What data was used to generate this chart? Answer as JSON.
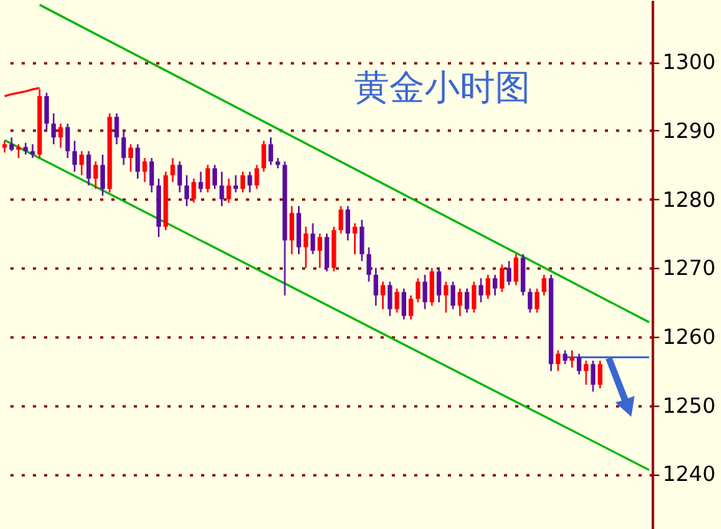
{
  "chart_data": {
    "type": "candlestick",
    "title": "黄金小时图",
    "categories": [
      null,
      null,
      null,
      null,
      null,
      null,
      null,
      null,
      null,
      null,
      null,
      null,
      null,
      null,
      null,
      null,
      null,
      null,
      null,
      null,
      null,
      null,
      null,
      null,
      null,
      null,
      null,
      null,
      null,
      null,
      null,
      null,
      null,
      null,
      null,
      null,
      null,
      null,
      null,
      null,
      null,
      null,
      null,
      null,
      null,
      null,
      null,
      null,
      null,
      null,
      null,
      null,
      null,
      null,
      null,
      null,
      null,
      null,
      null,
      null,
      null,
      null,
      null,
      null,
      null,
      null,
      null,
      null,
      null,
      null,
      null,
      null,
      null,
      null,
      null,
      null,
      null,
      null,
      null,
      null,
      null,
      null,
      null,
      null,
      null,
      null,
      null,
      null,
      null,
      null,
      null,
      null,
      null
    ],
    "colors": [
      "#ff0000",
      "#5a0aa0",
      "#ff0000",
      "#5a0aa0",
      "#5a0aa0",
      "#ff0000",
      "#5a0aa0",
      "#5a0aa0",
      "#ff0000",
      "#5a0aa0",
      "#5a0aa0",
      "#ff0000",
      "#5a0aa0",
      "#ff0000",
      "#5a0aa0",
      "#ff0000",
      "#5a0aa0",
      "#5a0aa0",
      "#ff0000",
      "#5a0aa0",
      "#ff0000",
      "#5a0aa0",
      "#5a0aa0",
      "#ff0000",
      "#ff0000",
      "#5a0aa0",
      "#5a0aa0",
      "#ff0000",
      "#5a0aa0",
      "#ff0000",
      "#5a0aa0",
      "#5a0aa0",
      "#ff0000",
      "#5a0aa0",
      "#ff0000",
      "#5a0aa0",
      "#ff0000",
      "#ff0000",
      "#5a0aa0",
      "#5a0aa0",
      "#5a0aa0",
      "#ff0000",
      "#5a0aa0",
      "#ff0000",
      "#5a0aa0",
      "#ff0000",
      "#5a0aa0",
      "#ff0000",
      "#ff0000",
      "#5a0aa0",
      "#ff0000",
      "#5a0aa0",
      "#5a0aa0",
      "#5a0aa0",
      "#ff0000",
      "#5a0aa0",
      "#ff0000",
      "#5a0aa0",
      "#ff0000",
      "#ff0000",
      "#5a0aa0",
      "#ff0000",
      "#5a0aa0",
      "#ff0000",
      "#5a0aa0",
      "#ff0000",
      "#5a0aa0",
      "#ff0000",
      "#5a0aa0",
      "#ff0000",
      "#5a0aa0",
      "#ff0000",
      "#5a0aa0",
      "#ff0000",
      "#5a0aa0",
      "#5a0aa0",
      "#ff0000",
      "#ff0000",
      "#5a0aa0",
      "#ff0000",
      "#5a0aa0",
      "#ff0000",
      "#5a0aa0",
      "#ff0000",
      "#5a0aa0",
      "#ff0000",
      null,
      null,
      null,
      null,
      null,
      null,
      null
    ],
    "ohlc": [
      [
        1287.5,
        1288.5,
        1286.8,
        1288
      ],
      [
        1288,
        1289,
        1287,
        1287.2
      ],
      [
        1287.2,
        1288,
        1286,
        1287.6
      ],
      [
        1287.6,
        1288.2,
        1286.5,
        1287
      ],
      [
        1287,
        1288,
        1286,
        1286.5
      ],
      [
        1286.5,
        1296,
        1286,
        1295
      ],
      [
        1295,
        1295.5,
        1290,
        1291
      ],
      [
        1291,
        1292.5,
        1288,
        1289
      ],
      [
        1289,
        1291,
        1287.5,
        1290.5
      ],
      [
        1290.5,
        1291,
        1286,
        1287
      ],
      [
        1287,
        1288.5,
        1284,
        1285
      ],
      [
        1285,
        1287,
        1283.5,
        1286.5
      ],
      [
        1286.5,
        1287,
        1282,
        1283
      ],
      [
        1283,
        1285.5,
        1281.5,
        1285
      ],
      [
        1285,
        1286.5,
        1280.5,
        1281.5
      ],
      [
        1281.5,
        1292.5,
        1281,
        1292
      ],
      [
        1292,
        1292.5,
        1288,
        1289
      ],
      [
        1289,
        1290,
        1285,
        1286
      ],
      [
        1286,
        1288,
        1284,
        1287.5
      ],
      [
        1287.5,
        1288,
        1283,
        1284
      ],
      [
        1284,
        1286,
        1282.5,
        1285.5
      ],
      [
        1285.5,
        1286,
        1281,
        1282
      ],
      [
        1282,
        1283,
        1274.5,
        1276
      ],
      [
        1276,
        1284,
        1275.5,
        1283.5
      ],
      [
        1283.5,
        1286,
        1282.5,
        1285
      ],
      [
        1285,
        1285.5,
        1281,
        1282
      ],
      [
        1282,
        1283.5,
        1279,
        1280
      ],
      [
        1280,
        1283,
        1279.5,
        1282.5
      ],
      [
        1282.5,
        1284,
        1281,
        1281.5
      ],
      [
        1281.5,
        1285,
        1281,
        1284.5
      ],
      [
        1284.5,
        1285,
        1281.5,
        1282
      ],
      [
        1282,
        1284,
        1279,
        1280
      ],
      [
        1280,
        1283,
        1279.5,
        1282
      ],
      [
        1282,
        1283.5,
        1281,
        1281.5
      ],
      [
        1281.5,
        1284,
        1281,
        1283.5
      ],
      [
        1283.5,
        1284,
        1281,
        1282
      ],
      [
        1282,
        1285,
        1281.5,
        1284.5
      ],
      [
        1284.5,
        1288.5,
        1284,
        1288
      ],
      [
        1288,
        1289,
        1285,
        1285.5
      ],
      [
        1285.5,
        1286,
        1284.5,
        1285
      ],
      [
        1285,
        1285.5,
        1266,
        1274
      ],
      [
        1274,
        1279,
        1272,
        1278
      ],
      [
        1278,
        1279,
        1272,
        1273
      ],
      [
        1273,
        1276,
        1270,
        1275
      ],
      [
        1275,
        1276.5,
        1272,
        1272.5
      ],
      [
        1272.5,
        1275,
        1270,
        1274.5
      ],
      [
        1274.5,
        1275,
        1269.5,
        1270
      ],
      [
        1270,
        1276,
        1269.5,
        1275.5
      ],
      [
        1275.5,
        1279,
        1275,
        1278.5
      ],
      [
        1278.5,
        1279,
        1274,
        1275
      ],
      [
        1275,
        1276.5,
        1272,
        1276
      ],
      [
        1276,
        1277,
        1271,
        1272
      ],
      [
        1272,
        1273,
        1268,
        1269
      ],
      [
        1269,
        1270,
        1264.5,
        1266
      ],
      [
        1266,
        1268,
        1264,
        1267.5
      ],
      [
        1267.5,
        1268,
        1263,
        1264
      ],
      [
        1264,
        1267,
        1263.5,
        1266.5
      ],
      [
        1266.5,
        1267,
        1262.5,
        1263
      ],
      [
        1263,
        1266,
        1262.5,
        1265.5
      ],
      [
        1265.5,
        1268.5,
        1265,
        1268
      ],
      [
        1268,
        1269,
        1264,
        1265
      ],
      [
        1265,
        1270,
        1264.5,
        1269.5
      ],
      [
        1269.5,
        1270,
        1265,
        1266
      ],
      [
        1266,
        1268,
        1263.5,
        1267.5
      ],
      [
        1267.5,
        1268,
        1264,
        1264.5
      ],
      [
        1264.5,
        1267,
        1263,
        1266.5
      ],
      [
        1266.5,
        1267,
        1263.5,
        1264
      ],
      [
        1264,
        1268,
        1263.5,
        1267.5
      ],
      [
        1267.5,
        1268.5,
        1265,
        1266
      ],
      [
        1266,
        1269,
        1265.5,
        1268.5
      ],
      [
        1268.5,
        1269,
        1266,
        1267
      ],
      [
        1267,
        1270.5,
        1266.5,
        1270
      ],
      [
        1270,
        1271,
        1267.5,
        1268
      ],
      [
        1268,
        1272,
        1267.5,
        1271.5
      ],
      [
        1271.5,
        1272,
        1266,
        1266.5
      ],
      [
        1266.5,
        1267,
        1263.5,
        1264
      ],
      [
        1264,
        1267,
        1263.5,
        1266.5
      ],
      [
        1266.5,
        1269,
        1266,
        1268.5
      ],
      [
        1268.5,
        1269,
        1255,
        1256
      ],
      [
        1256,
        1258,
        1255,
        1257.5
      ],
      [
        1257.5,
        1258,
        1256,
        1256.5
      ],
      [
        1256.5,
        1258,
        1255.5,
        1257
      ],
      [
        1257,
        1257.5,
        1254.5,
        1255
      ],
      [
        1255,
        1256.5,
        1253,
        1256
      ],
      [
        1256,
        1256.5,
        1252,
        1253
      ],
      [
        1253,
        1256.5,
        1252.5,
        1256
      ],
      null,
      null,
      null,
      null,
      null,
      null,
      null
    ],
    "series": [
      {
        "type": "line",
        "color": "#ff0000",
        "values": [
          1295,
          1295.3,
          1295.5,
          1295.7,
          1296,
          1296.2,
          null,
          null,
          null,
          null,
          null,
          null,
          null,
          null,
          null,
          null,
          null,
          null,
          null,
          null,
          null,
          null,
          null,
          null,
          null,
          null,
          null,
          null,
          null,
          null,
          null,
          null,
          null,
          null,
          null,
          null,
          null,
          null,
          null,
          null,
          null,
          null,
          null,
          null,
          null,
          null,
          null,
          null,
          null,
          null,
          null,
          null,
          null,
          null,
          null,
          null,
          null,
          null,
          null,
          null,
          null,
          null,
          null,
          null,
          null,
          null,
          null,
          null,
          null,
          null,
          null,
          null,
          null,
          null,
          null,
          null,
          null,
          null,
          null,
          null,
          null,
          null,
          null,
          null,
          null,
          null,
          null,
          null,
          null,
          null,
          null,
          null,
          null
        ]
      },
      {
        "type": "line",
        "color": "#00b400",
        "values": [
          null,
          null,
          null,
          null,
          null,
          1308.3,
          null,
          null,
          null,
          null,
          null,
          null,
          null,
          null,
          null,
          null,
          null,
          null,
          null,
          null,
          null,
          null,
          null,
          null,
          null,
          null,
          null,
          null,
          null,
          null,
          null,
          null,
          null,
          null,
          null,
          null,
          null,
          null,
          null,
          null,
          null,
          null,
          null,
          null,
          null,
          null,
          null,
          null,
          null,
          null,
          null,
          null,
          null,
          null,
          null,
          null,
          null,
          null,
          null,
          null,
          null,
          null,
          null,
          null,
          null,
          null,
          null,
          null,
          null,
          null,
          null,
          null,
          null,
          null,
          null,
          null,
          null,
          null,
          null,
          null,
          null,
          null,
          null,
          null,
          null,
          null,
          null,
          null,
          null,
          null,
          null,
          null,
          1262.1
        ]
      },
      {
        "type": "line",
        "color": "#00b400",
        "values": [
          1288.6,
          null,
          null,
          null,
          null,
          null,
          null,
          null,
          null,
          null,
          null,
          null,
          null,
          null,
          null,
          null,
          null,
          null,
          null,
          null,
          null,
          null,
          null,
          null,
          null,
          null,
          null,
          null,
          null,
          null,
          null,
          null,
          null,
          null,
          null,
          null,
          null,
          null,
          null,
          null,
          null,
          null,
          null,
          null,
          null,
          null,
          null,
          null,
          null,
          null,
          null,
          null,
          null,
          null,
          null,
          null,
          null,
          null,
          null,
          null,
          null,
          null,
          null,
          null,
          null,
          null,
          null,
          null,
          null,
          null,
          null,
          null,
          null,
          null,
          null,
          null,
          null,
          null,
          null,
          null,
          null,
          null,
          null,
          null,
          null,
          null,
          null,
          null,
          null,
          null,
          null,
          null,
          1240.6
        ]
      },
      {
        "type": "line",
        "color": "#3a66d0",
        "values": [
          null,
          null,
          null,
          null,
          null,
          null,
          null,
          null,
          null,
          null,
          null,
          null,
          null,
          null,
          null,
          null,
          null,
          null,
          null,
          null,
          null,
          null,
          null,
          null,
          null,
          null,
          null,
          null,
          null,
          null,
          null,
          null,
          null,
          null,
          null,
          null,
          null,
          null,
          null,
          null,
          null,
          null,
          null,
          null,
          null,
          null,
          null,
          null,
          null,
          null,
          null,
          null,
          null,
          null,
          null,
          null,
          null,
          null,
          null,
          null,
          null,
          null,
          null,
          null,
          null,
          null,
          null,
          null,
          null,
          null,
          null,
          null,
          null,
          null,
          null,
          null,
          null,
          null,
          null,
          null,
          1257,
          null,
          null,
          null,
          null,
          null,
          null,
          null,
          null,
          null,
          null,
          null,
          1257
        ]
      }
    ],
    "ylim": [
      1232,
      1309
    ],
    "yticks": [
      1240,
      1250,
      1260,
      1270,
      1280,
      1290,
      1300
    ],
    "grid": "y"
  }
}
